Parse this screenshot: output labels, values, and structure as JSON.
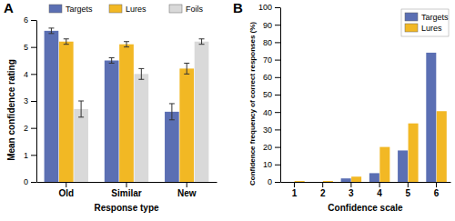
{
  "chart_data": [
    {
      "type": "bar",
      "title": "A",
      "x_label": "Response type",
      "y_label": "Mean confidence rating",
      "categories": [
        "Old",
        "Similar",
        "New"
      ],
      "series": [
        {
          "name": "Targets",
          "color": "#5b6fb3",
          "values": [
            5.6,
            4.5,
            2.6
          ],
          "errors": [
            0.1,
            0.1,
            0.3
          ]
        },
        {
          "name": "Lures",
          "color": "#f2b824",
          "values": [
            5.2,
            5.1,
            4.2
          ],
          "errors": [
            0.1,
            0.1,
            0.2
          ]
        },
        {
          "name": "Foils",
          "color": "#d9d9d9",
          "values": [
            2.7,
            4.0,
            5.2
          ],
          "errors": [
            0.3,
            0.2,
            0.1
          ]
        }
      ],
      "ylim": [
        0,
        6
      ],
      "yticks": [
        0,
        1,
        2,
        3,
        4,
        5,
        6
      ],
      "legend": "top"
    },
    {
      "type": "bar",
      "title": "B",
      "x_label": "Confidence scale",
      "y_label": "Confidence frequency of correct responses (%)",
      "categories": [
        "1",
        "2",
        "3",
        "4",
        "5",
        "6"
      ],
      "series": [
        {
          "name": "Targets",
          "color": "#5b6fb3",
          "values": [
            0,
            0,
            2,
            5,
            18,
            74
          ]
        },
        {
          "name": "Lures",
          "color": "#f2b824",
          "values": [
            0.5,
            0.5,
            3,
            20,
            33.5,
            40.5
          ]
        }
      ],
      "ylim": [
        0,
        100
      ],
      "yticks": [
        0,
        10,
        20,
        30,
        40,
        50,
        60,
        70,
        80,
        90,
        100
      ],
      "legend": "top-right"
    }
  ]
}
